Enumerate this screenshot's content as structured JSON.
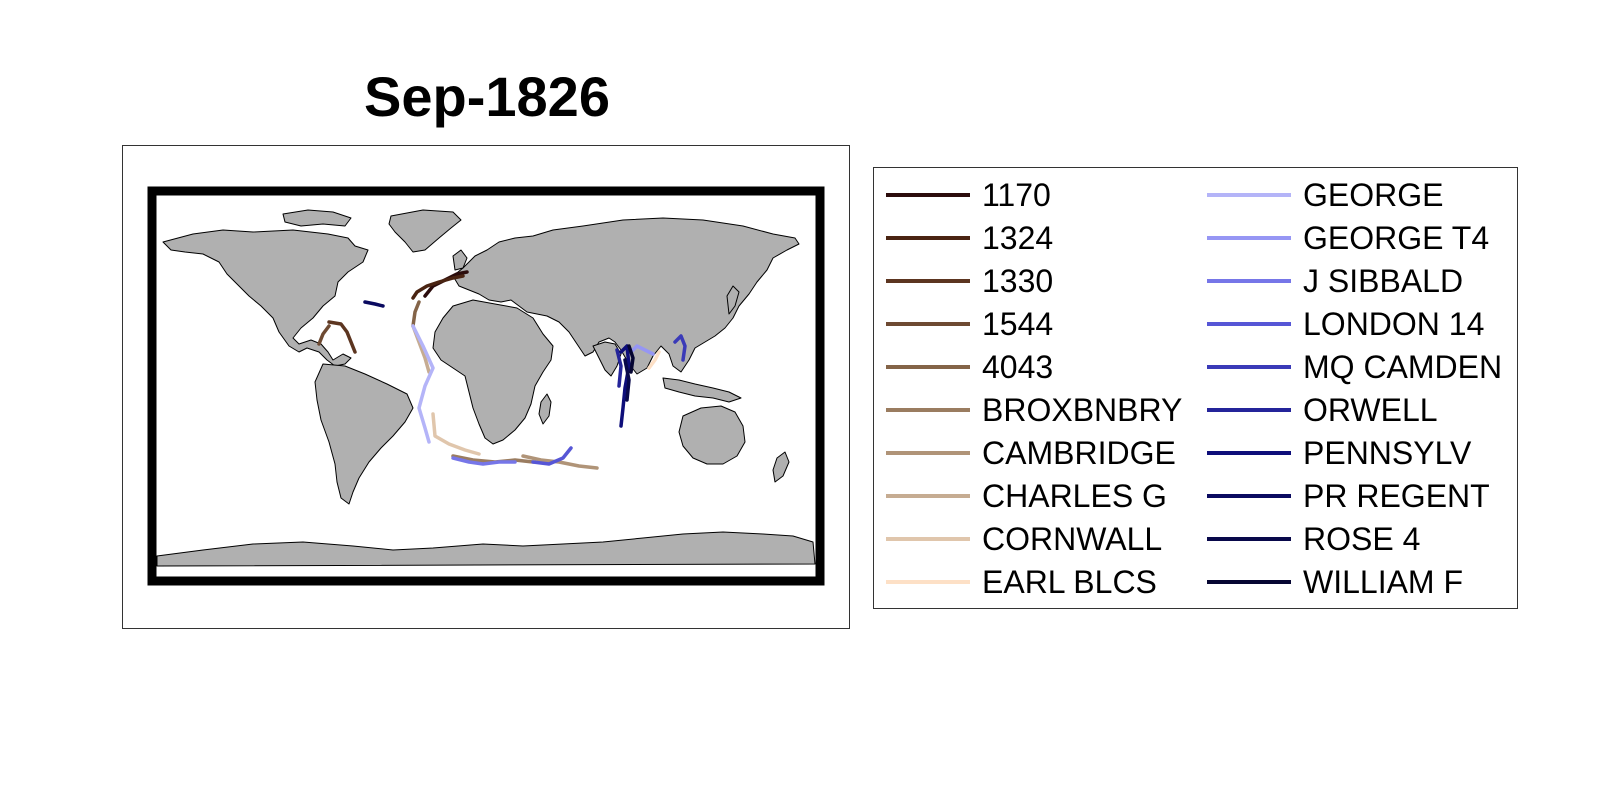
{
  "title": "Sep-1826",
  "map": {
    "land_color": "#b0b0b0",
    "coast_color": "#000000",
    "frame_color": "#000000",
    "background": "#ffffff"
  },
  "legend": {
    "items": [
      {
        "label": "1170",
        "color": "#2b0c0c"
      },
      {
        "label": "1324",
        "color": "#4a2412"
      },
      {
        "label": "1330",
        "color": "#5c3520"
      },
      {
        "label": "1544",
        "color": "#6e4a32"
      },
      {
        "label": "4043",
        "color": "#846448"
      },
      {
        "label": "BROXBNBRY",
        "color": "#9a7c60"
      },
      {
        "label": "CAMBRIDGE",
        "color": "#b09478"
      },
      {
        "label": "CHARLES G",
        "color": "#c6ac92"
      },
      {
        "label": "CORNWALL",
        "color": "#e0c6ac"
      },
      {
        "label": "EARL BLCS",
        "color": "#fde0c6"
      },
      {
        "label": "GEORGE",
        "color": "#b4b4f8"
      },
      {
        "label": "GEORGE T4",
        "color": "#9696f4"
      },
      {
        "label": "J SIBBALD",
        "color": "#7676e8"
      },
      {
        "label": "LONDON 14",
        "color": "#5656d6"
      },
      {
        "label": "MQ CAMDEN",
        "color": "#3a3ab8"
      },
      {
        "label": "ORWELL",
        "color": "#24249a"
      },
      {
        "label": "PENNSYLV",
        "color": "#0e0e7a"
      },
      {
        "label": "PR REGENT",
        "color": "#0a0a60"
      },
      {
        "label": "ROSE 4",
        "color": "#08084a"
      },
      {
        "label": "WILLIAM F",
        "color": "#060632"
      }
    ]
  }
}
